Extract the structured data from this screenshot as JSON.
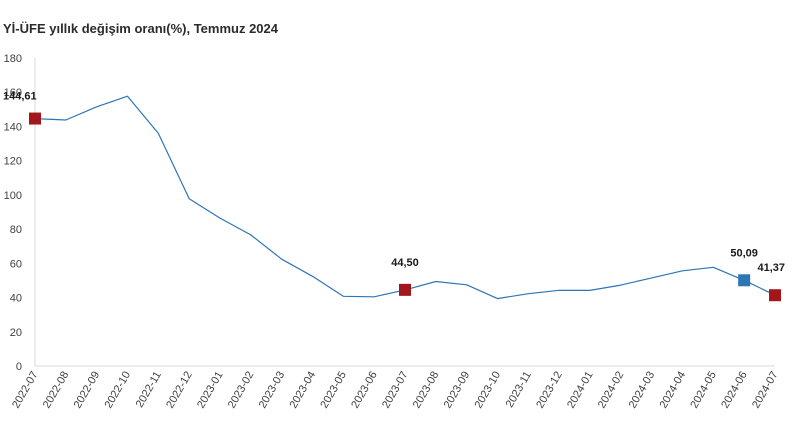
{
  "chart_data": {
    "type": "line",
    "title": "Yİ-ÜFE yıllık değişim oranı(%), Temmuz 2024",
    "xlabel": "",
    "ylabel": "",
    "ylim": [
      0,
      180
    ],
    "yticks": [
      0,
      20,
      40,
      60,
      80,
      100,
      120,
      140,
      160,
      180
    ],
    "grid": false,
    "legend": "none",
    "categories": [
      "2022-07",
      "2022-08",
      "2022-09",
      "2022-10",
      "2022-11",
      "2022-12",
      "2023-01",
      "2023-02",
      "2023-03",
      "2023-04",
      "2023-05",
      "2023-06",
      "2023-07",
      "2023-08",
      "2023-09",
      "2023-10",
      "2023-11",
      "2023-12",
      "2024-01",
      "2024-02",
      "2024-03",
      "2024-04",
      "2024-05",
      "2024-06",
      "2024-07"
    ],
    "series": [
      {
        "values": [
          144.61,
          143.75,
          151.5,
          157.69,
          136.02,
          97.72,
          86.46,
          76.61,
          62.43,
          52.44,
          40.76,
          40.42,
          44.5,
          49.41,
          47.44,
          39.39,
          42.25,
          44.22,
          44.2,
          47.29,
          51.47,
          55.66,
          57.68,
          50.09,
          41.37
        ],
        "color": "#2e75b6"
      }
    ],
    "highlights": [
      {
        "index": 0,
        "label": "144,61",
        "color": "#a3171c"
      },
      {
        "index": 12,
        "label": "44,50",
        "color": "#a3171c"
      },
      {
        "index": 23,
        "label": "50,09",
        "color": "#2e75b6"
      },
      {
        "index": 24,
        "label": "41,37",
        "color": "#a3171c"
      }
    ]
  }
}
